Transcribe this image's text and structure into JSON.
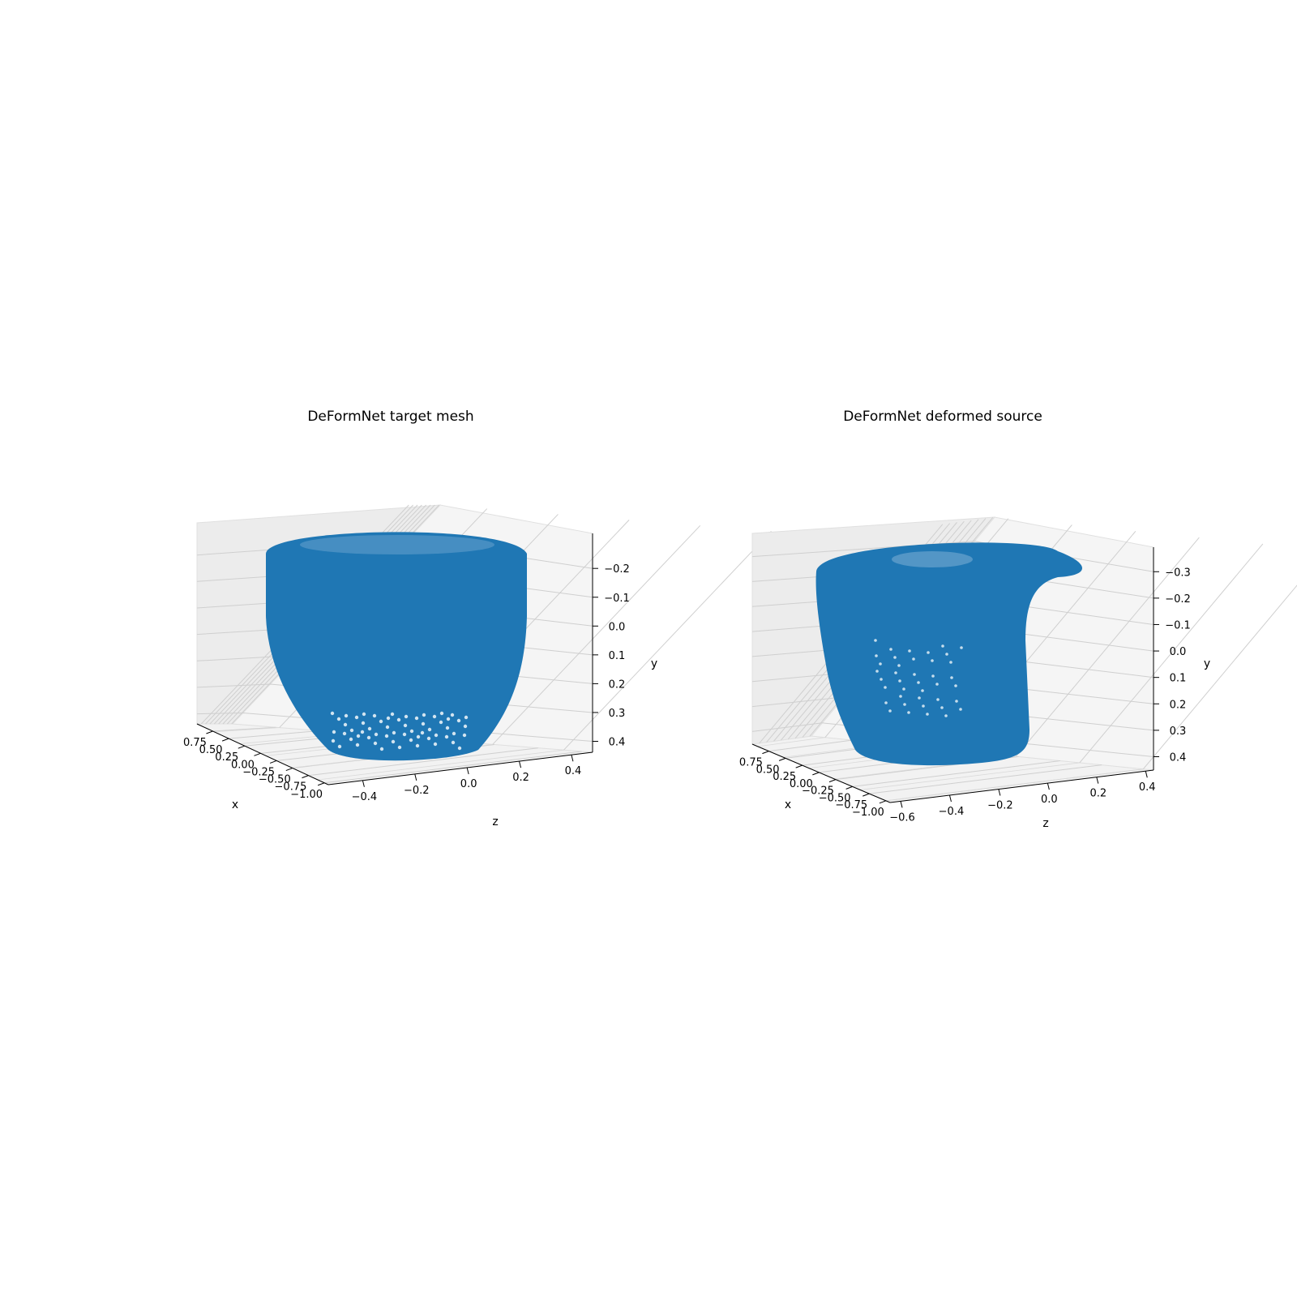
{
  "chart_data": [
    {
      "type": "scatter",
      "title": "DeFormNet target mesh",
      "projection": "3d",
      "grid": true,
      "series_color": "#1f77b4",
      "xlabel": "x",
      "ylabel": "y",
      "zlabel": "z",
      "x_ticks": [
        "0.75",
        "0.50",
        "0.25",
        "0.00",
        "−0.25",
        "−0.50",
        "−0.75",
        "−1.00"
      ],
      "z_ticks": [
        "−0.4",
        "−0.2",
        "0.0",
        "0.2",
        "0.4"
      ],
      "y_ticks": [
        "−0.2",
        "−0.1",
        "0.0",
        "0.1",
        "0.2",
        "0.3",
        "0.4"
      ],
      "xlim": [
        -1.0,
        0.75
      ],
      "ylim": [
        0.4,
        -0.2
      ],
      "zlim": [
        -0.4,
        0.4
      ],
      "shape": "bowl"
    },
    {
      "type": "scatter",
      "title": "DeFormNet deformed source",
      "projection": "3d",
      "grid": true,
      "series_color": "#1f77b4",
      "xlabel": "x",
      "ylabel": "y",
      "zlabel": "z",
      "x_ticks": [
        "0.75",
        "0.50",
        "0.25",
        "0.00",
        "−0.25",
        "−0.50",
        "−0.75",
        "−1.00"
      ],
      "z_ticks": [
        "−0.6",
        "−0.4",
        "−0.2",
        "0.0",
        "0.2",
        "0.4"
      ],
      "y_ticks": [
        "−0.3",
        "−0.2",
        "−0.1",
        "0.0",
        "0.1",
        "0.2",
        "0.3",
        "0.4"
      ],
      "xlim": [
        -1.0,
        0.75
      ],
      "ylim": [
        0.4,
        -0.3
      ],
      "zlim": [
        -0.6,
        0.4
      ],
      "shape": "folded-sheet"
    }
  ]
}
